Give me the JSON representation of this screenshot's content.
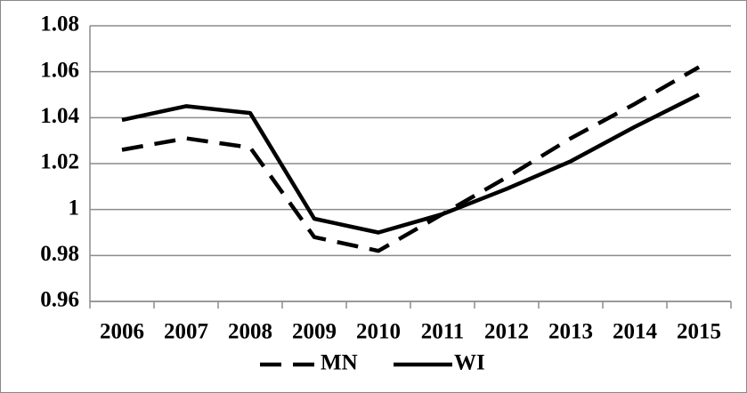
{
  "chart_data": {
    "type": "line",
    "categories": [
      "2006",
      "2007",
      "2008",
      "2009",
      "2010",
      "2011",
      "2012",
      "2013",
      "2014",
      "2015"
    ],
    "series": [
      {
        "name": "MN",
        "color": "#000000",
        "dash": true,
        "values": [
          1.026,
          1.031,
          1.027,
          0.988,
          0.982,
          0.998,
          1.014,
          1.031,
          1.046,
          1.062
        ]
      },
      {
        "name": "WI",
        "color": "#000000",
        "dash": false,
        "values": [
          1.039,
          1.045,
          1.042,
          0.996,
          0.99,
          0.998,
          1.009,
          1.021,
          1.036,
          1.05
        ]
      }
    ],
    "ylim": [
      0.96,
      1.08
    ],
    "yticks": [
      0.96,
      0.98,
      1,
      1.02,
      1.04,
      1.06,
      1.08
    ],
    "grid": true,
    "legend": "bottom"
  }
}
